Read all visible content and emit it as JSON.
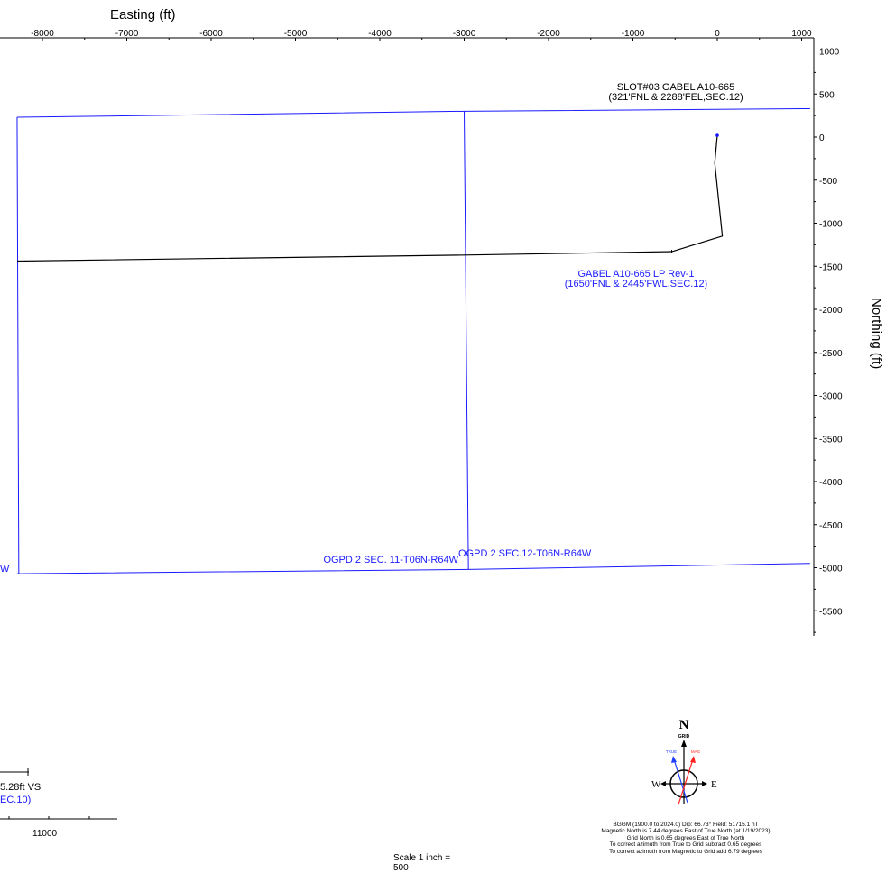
{
  "axes": {
    "x_title": "Easting (ft)",
    "y_title": "Northing (ft)",
    "x_ticks": [
      "-8000",
      "-7000",
      "-6000",
      "-5000",
      "-4000",
      "-3000",
      "-2000",
      "-1000",
      "0",
      "1000"
    ],
    "y_ticks": [
      "1000",
      "500",
      "0",
      "-500",
      "-1000",
      "-1500",
      "-2000",
      "-2500",
      "-3000",
      "-3500",
      "-4000",
      "-4500",
      "-5000",
      "-5500"
    ]
  },
  "chart_data": {
    "type": "scatter",
    "xlabel": "Easting (ft)",
    "ylabel": "Northing (ft)",
    "xlim": [
      -8300,
      1100
    ],
    "ylim": [
      -5800,
      1150
    ],
    "series": [
      {
        "points": [
          [
            0,
            20
          ],
          [
            -30,
            -300
          ],
          [
            60,
            -1150
          ],
          [
            -540,
            -1330
          ],
          [
            -3000,
            -1370
          ],
          [
            -8300,
            -1440
          ]
        ]
      }
    ],
    "boundaries": [
      {
        "points": [
          [
            -8300,
            230
          ],
          [
            -3000,
            300
          ],
          [
            1100,
            330
          ]
        ]
      },
      {
        "points": [
          [
            -8300,
            -5070
          ],
          [
            -2950,
            -5020
          ],
          [
            1100,
            -4950
          ]
        ]
      },
      {
        "points": [
          [
            -8300,
            230
          ],
          [
            -8280,
            -5070
          ]
        ]
      },
      {
        "points": [
          [
            -3000,
            300
          ],
          [
            -2950,
            -5020
          ]
        ]
      }
    ]
  },
  "annotations": {
    "slot_line1": "SLOT#03 GABEL A10-665",
    "slot_line2": "(321'FNL & 2288'FEL,SEC.12)",
    "lp_line1": "GABEL A10-665 LP Rev-1",
    "lp_line2": "(1650'FNL & 2445'FWL,SEC.12)",
    "sec11": "OGPD 2 SEC. 11-T06N-R64W",
    "sec12": "OGPD 2 SEC.12-T06N-R64W",
    "left_w": "W"
  },
  "vs_fragment": {
    "label": "5.28ft VS",
    "sub": "EC.10)",
    "tick": "11000"
  },
  "scale_text": "Scale 1 inch = 500",
  "compass": {
    "n": "N",
    "grid": "GRID",
    "true": "TRUE",
    "mag": "MAG",
    "w": "W",
    "e": "E",
    "true_color": "#2040ff",
    "mag_color": "#ff2020"
  },
  "info_lines": [
    "BGGM (1900.0 to 2024.0) Dip: 66.73°  Field: 51715.1 nT",
    "Magnetic North is 7.44 degrees East of True North (at 1/19/2023)",
    "Grid North is 0.65 degrees East of True North",
    "To correct azimuth from True to Grid subtract 0.65 degrees",
    "To correct azimuth from Magnetic to Grid add 6.79 degrees"
  ]
}
